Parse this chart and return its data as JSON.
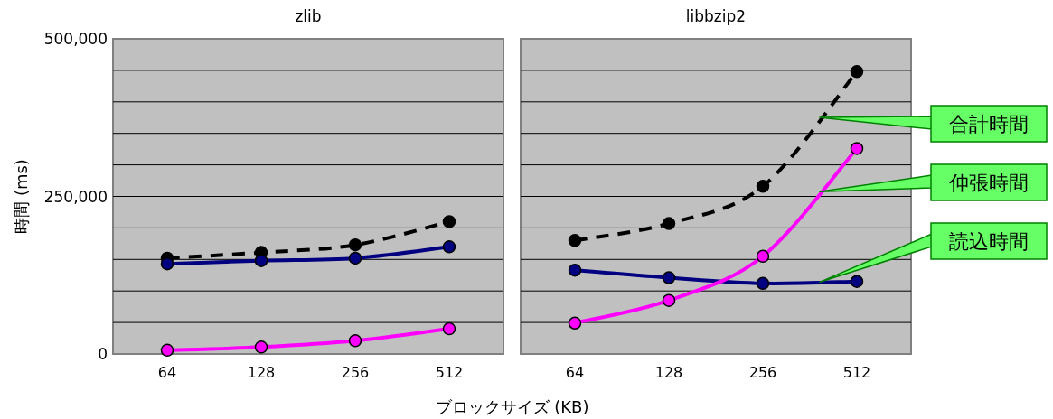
{
  "chart_data": [
    {
      "type": "line",
      "title": "zlib",
      "ylabel": "時間 (ms)",
      "xlabel": "ブロックサイズ (KB)",
      "categories": [
        "64",
        "128",
        "256",
        "512"
      ],
      "ylim": [
        0,
        500000
      ],
      "yticks": [
        {
          "value": 0,
          "label": "0"
        },
        {
          "value": 50000,
          "label": null
        },
        {
          "value": 100000,
          "label": null
        },
        {
          "value": 150000,
          "label": null
        },
        {
          "value": 200000,
          "label": null
        },
        {
          "value": 250000,
          "label": "250,000"
        },
        {
          "value": 300000,
          "label": null
        },
        {
          "value": 350000,
          "label": null
        },
        {
          "value": 400000,
          "label": null
        },
        {
          "value": 450000,
          "label": null
        },
        {
          "value": 500000,
          "label": "500,000"
        }
      ],
      "grid": "y",
      "marker": "circle",
      "series": [
        {
          "color": "#000000",
          "line_style": "dashed",
          "values": [
            152000,
            161000,
            173000,
            210000
          ]
        },
        {
          "color": "#000080",
          "line_style": "solid",
          "values": [
            143000,
            148000,
            152000,
            170000
          ]
        },
        {
          "color": "#ff00ff",
          "line_style": "solid",
          "values": [
            6000,
            11000,
            21000,
            40000
          ]
        }
      ]
    },
    {
      "type": "line",
      "title": "libbzip2",
      "categories": [
        "64",
        "128",
        "256",
        "512"
      ],
      "ylim": [
        0,
        500000
      ],
      "yticks": [
        {
          "value": 0,
          "label": null
        },
        {
          "value": 50000,
          "label": null
        },
        {
          "value": 100000,
          "label": null
        },
        {
          "value": 150000,
          "label": null
        },
        {
          "value": 200000,
          "label": null
        },
        {
          "value": 250000,
          "label": null
        },
        {
          "value": 300000,
          "label": null
        },
        {
          "value": 350000,
          "label": null
        },
        {
          "value": 400000,
          "label": null
        },
        {
          "value": 450000,
          "label": null
        },
        {
          "value": 500000,
          "label": null
        }
      ],
      "grid": "y",
      "marker": "circle",
      "tick_labels": "x",
      "series": [
        {
          "name": "合計時間",
          "color": "#000000",
          "line_style": "dashed",
          "values": [
            180000,
            207000,
            266000,
            448000
          ]
        },
        {
          "name": "読込時間",
          "color": "#000080",
          "line_style": "solid",
          "values": [
            133000,
            121000,
            112000,
            115000
          ]
        },
        {
          "name": "伸張時間",
          "color": "#ff00ff",
          "line_style": "solid",
          "values": [
            49000,
            85000,
            155000,
            326000
          ]
        }
      ]
    }
  ]
}
